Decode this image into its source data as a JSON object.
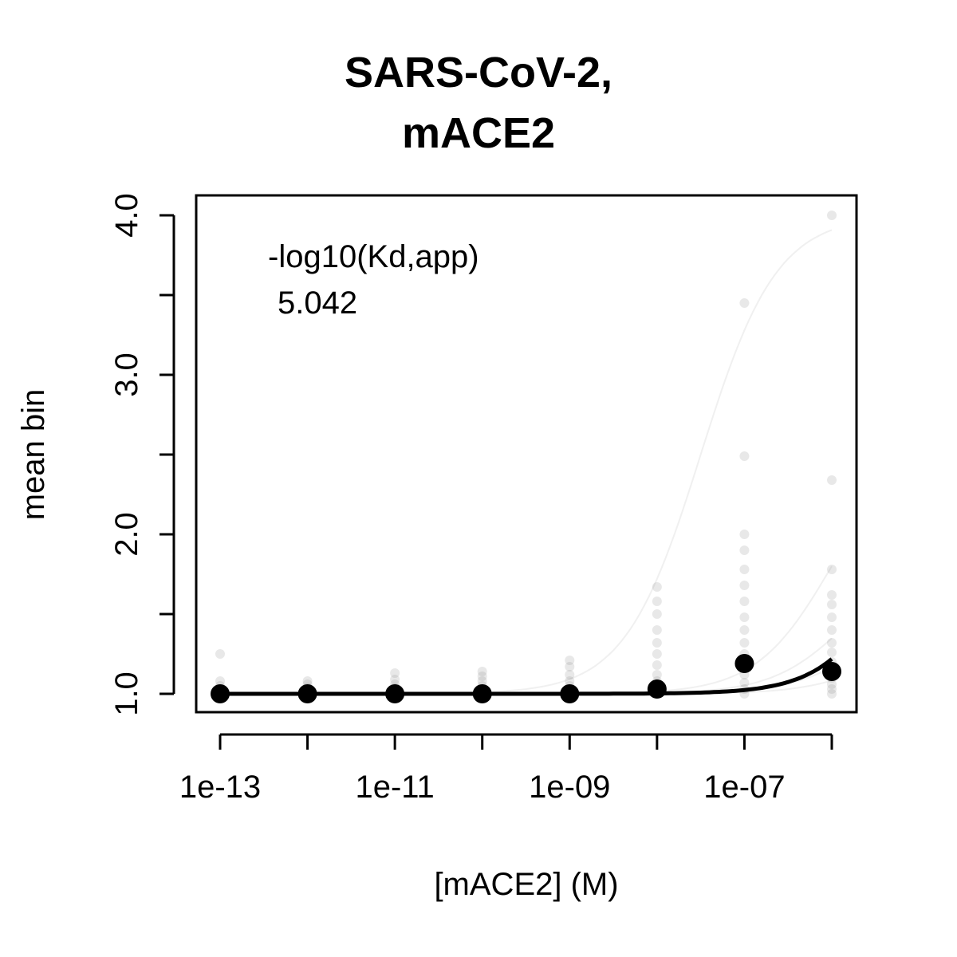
{
  "chart_data": {
    "type": "scatter",
    "title_lines": [
      "SARS-CoV-2,",
      "mACE2"
    ],
    "xlabel": "[mACE2] (M)",
    "ylabel": "mean bin",
    "x_scale": "log10",
    "xlim": [
      1e-13,
      1e-06
    ],
    "ylim": [
      1.0,
      4.0
    ],
    "x_ticks": [
      1e-13,
      1e-12,
      1e-11,
      1e-10,
      1e-09,
      1e-08,
      1e-07,
      1e-06
    ],
    "x_tick_labels": [
      "1e-13",
      "",
      "1e-11",
      "",
      "1e-09",
      "",
      "1e-07",
      ""
    ],
    "y_ticks": [
      1.0,
      1.5,
      2.0,
      2.5,
      3.0,
      3.5,
      4.0
    ],
    "y_tick_labels": [
      "1.0",
      "",
      "2.0",
      "",
      "3.0",
      "",
      "4.0"
    ],
    "annotation": {
      "label": "-log10(Kd,app)",
      "value": "5.042"
    },
    "grid": false,
    "series": [
      {
        "role": "measured-points",
        "color": "#000000",
        "x": [
          1e-13,
          1e-12,
          1e-11,
          1e-10,
          1e-09,
          1e-08,
          1e-07,
          1e-06
        ],
        "y": [
          1.0,
          1.0,
          1.0,
          1.0,
          1.0,
          1.03,
          1.19,
          1.14
        ]
      },
      {
        "role": "fitted-curve",
        "color": "#000000",
        "neg_log10_kd": 5.042,
        "baseline": 1.0,
        "amplitude": 2.2
      }
    ],
    "background_distribution": {
      "color": "#808080",
      "columns": [
        {
          "x": 1e-13,
          "y": [
            1.0,
            1.01,
            1.02,
            1.03,
            1.05,
            1.08,
            1.25
          ]
        },
        {
          "x": 1e-12,
          "y": [
            1.0,
            1.01,
            1.02,
            1.04,
            1.06,
            1.08
          ]
        },
        {
          "x": 1e-11,
          "y": [
            1.0,
            1.01,
            1.02,
            1.04,
            1.06,
            1.09,
            1.13
          ]
        },
        {
          "x": 1e-10,
          "y": [
            1.0,
            1.01,
            1.03,
            1.05,
            1.08,
            1.11,
            1.14
          ]
        },
        {
          "x": 1e-09,
          "y": [
            1.0,
            1.01,
            1.03,
            1.05,
            1.08,
            1.12,
            1.17,
            1.21
          ]
        },
        {
          "x": 1e-08,
          "y": [
            1.0,
            1.02,
            1.05,
            1.08,
            1.12,
            1.18,
            1.25,
            1.32,
            1.4,
            1.5,
            1.58,
            1.67
          ]
        },
        {
          "x": 1e-07,
          "y": [
            1.0,
            1.03,
            1.07,
            1.12,
            1.18,
            1.25,
            1.32,
            1.4,
            1.48,
            1.58,
            1.68,
            1.78,
            1.9,
            2.0,
            2.49,
            3.45
          ]
        },
        {
          "x": 1e-06,
          "y": [
            1.0,
            1.03,
            1.06,
            1.1,
            1.15,
            1.2,
            1.26,
            1.32,
            1.4,
            1.48,
            1.56,
            1.62,
            1.78,
            2.34,
            4.0
          ]
        }
      ],
      "fit_curves": [
        {
          "neg_log10_kd": 7.5,
          "amplitude": 3.0
        },
        {
          "neg_log10_kd": 6.0,
          "amplitude": 1.6
        },
        {
          "neg_log10_kd": 5.8,
          "amplitude": 0.9
        },
        {
          "neg_log10_kd": 5.5,
          "amplitude": 0.7
        },
        {
          "neg_log10_kd": 5.3,
          "amplitude": 0.5
        }
      ]
    }
  }
}
